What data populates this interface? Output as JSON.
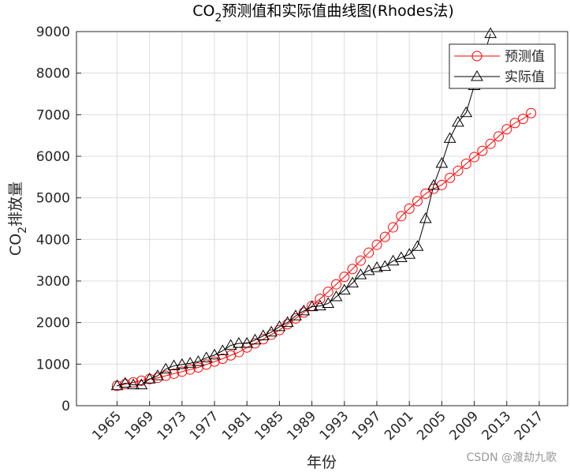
{
  "chart_data": {
    "type": "line",
    "title_parts": [
      "CO",
      "2",
      "预测值和实际值曲线图(Rhodes法)"
    ],
    "ylabel_parts": [
      "CO",
      "2",
      "排放量"
    ],
    "xlabel": "年份",
    "annotation": "CSDN @渡劫九歌",
    "x": [
      1965,
      1966,
      1967,
      1968,
      1969,
      1970,
      1971,
      1972,
      1973,
      1974,
      1975,
      1976,
      1977,
      1978,
      1979,
      1980,
      1981,
      1982,
      1983,
      1984,
      1985,
      1986,
      1987,
      1988,
      1989,
      1990,
      1991,
      1992,
      1993,
      1994,
      1995,
      1996,
      1997,
      1998,
      1999,
      2000,
      2001,
      2002,
      2003,
      2004,
      2005,
      2006,
      2007,
      2008,
      2009,
      2010,
      2011,
      2012,
      2013,
      2014,
      2015,
      2016
    ],
    "series": [
      {
        "name": "预测值",
        "color": "#ff0000",
        "marker": "circle",
        "values": [
          480,
          520,
          560,
          600,
          640,
          670,
          720,
          770,
          820,
          870,
          920,
          990,
          1060,
          1130,
          1210,
          1290,
          1400,
          1500,
          1600,
          1710,
          1820,
          1960,
          2100,
          2240,
          2400,
          2570,
          2740,
          2920,
          3100,
          3290,
          3490,
          3680,
          3870,
          4060,
          4290,
          4560,
          4740,
          4920,
          5100,
          5220,
          5310,
          5480,
          5650,
          5820,
          5980,
          6130,
          6300,
          6480,
          6650,
          6800,
          6900,
          7040
        ]
      },
      {
        "name": "实际值",
        "color": "#000000",
        "marker": "triangle",
        "values": [
          480,
          540,
          500,
          500,
          640,
          720,
          880,
          960,
          990,
          1020,
          1060,
          1150,
          1220,
          1320,
          1450,
          1500,
          1500,
          1580,
          1680,
          1770,
          1900,
          2000,
          2160,
          2280,
          2380,
          2400,
          2460,
          2620,
          2780,
          2950,
          3150,
          3250,
          3320,
          3350,
          3480,
          3560,
          3640,
          3830,
          4500,
          5300,
          5830,
          6430,
          6820,
          7050,
          7700,
          8300,
          8950,
          null,
          null,
          null,
          null,
          null
        ]
      }
    ],
    "xlim": [
      1960,
      2020.5
    ],
    "xticks": [
      1965,
      1969,
      1973,
      1977,
      1981,
      1985,
      1989,
      1993,
      1997,
      2001,
      2005,
      2009,
      2013,
      2017
    ],
    "ylim": [
      0,
      9000
    ],
    "yticks": [
      0,
      1000,
      2000,
      3000,
      4000,
      5000,
      6000,
      7000,
      8000,
      9000
    ],
    "grid": true,
    "legend": "northeast"
  }
}
